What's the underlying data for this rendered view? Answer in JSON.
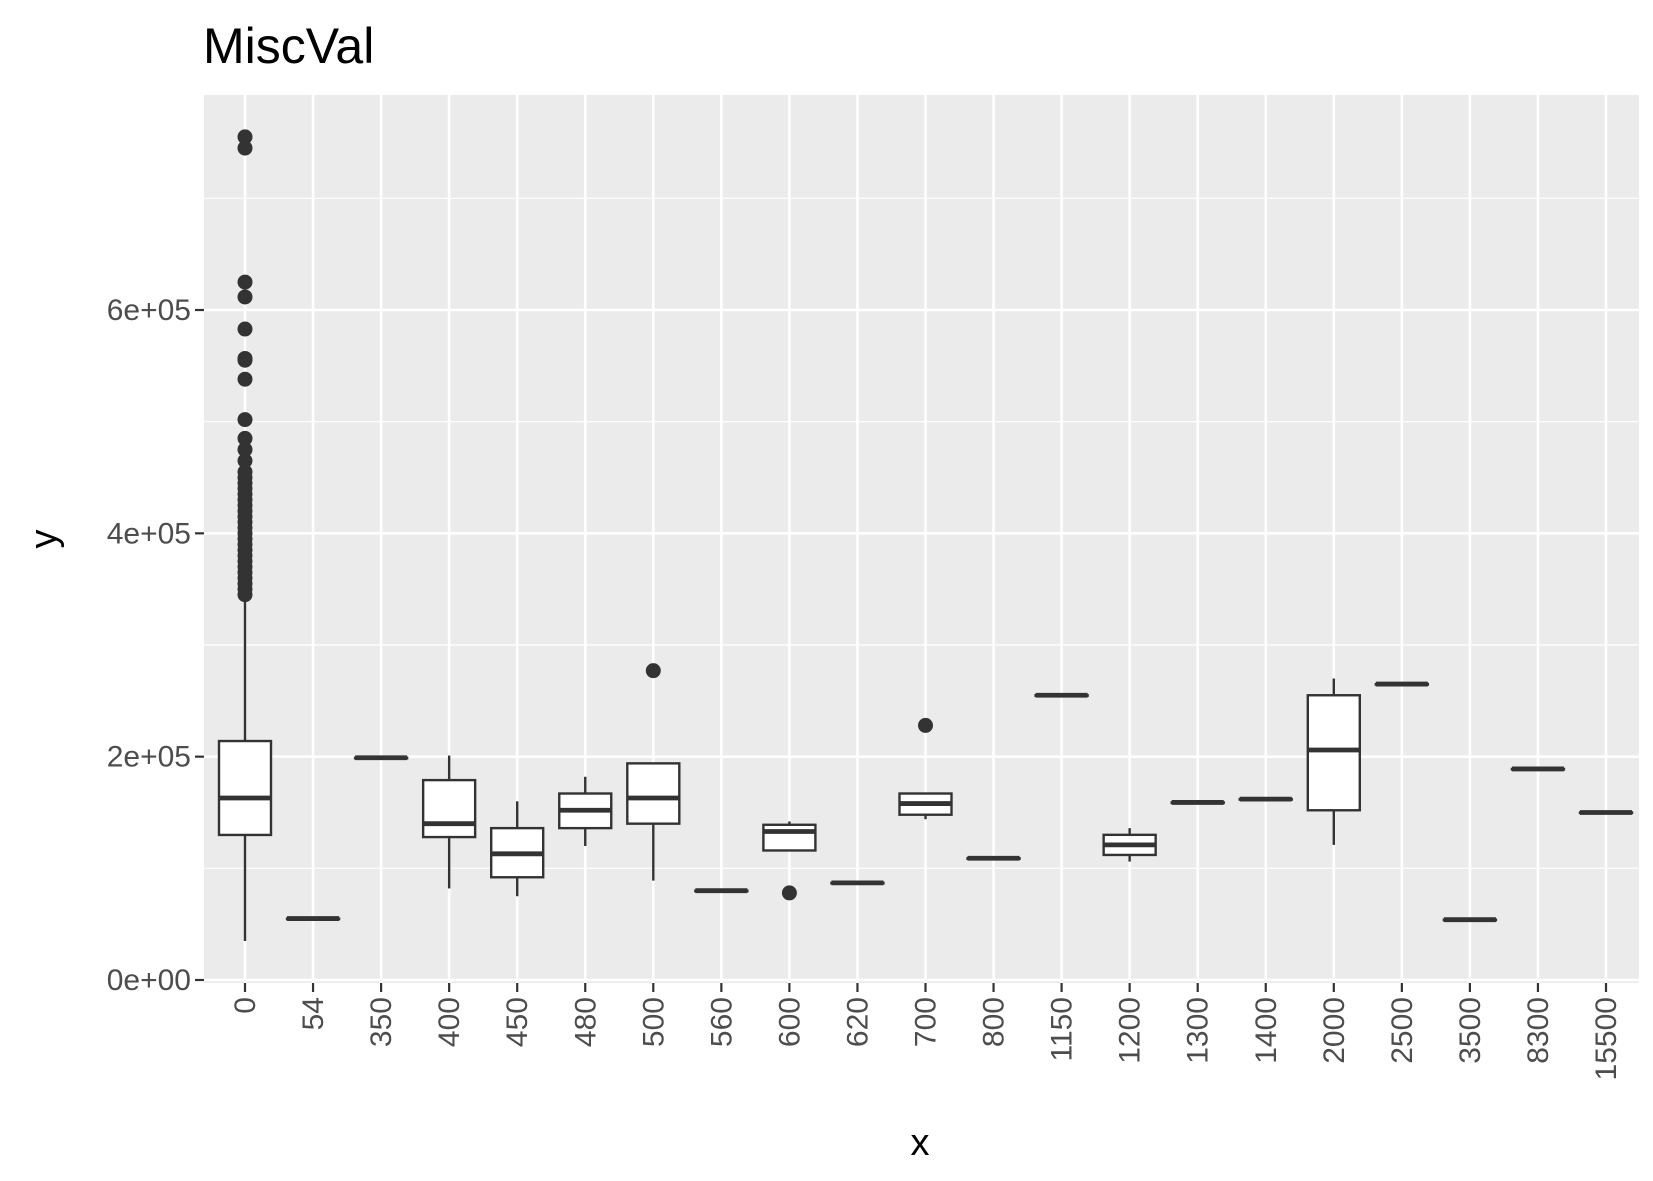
{
  "chart_data": {
    "type": "box",
    "title": "MiscVal",
    "xlabel": "x",
    "ylabel": "y",
    "categories": [
      "0",
      "54",
      "350",
      "400",
      "450",
      "480",
      "500",
      "560",
      "600",
      "620",
      "700",
      "800",
      "1150",
      "1200",
      "1300",
      "1400",
      "2000",
      "2500",
      "3500",
      "8300",
      "15500"
    ],
    "y_ticks": [
      {
        "value": 0,
        "label": "0e+00"
      },
      {
        "value": 200000,
        "label": "2e+05"
      },
      {
        "value": 400000,
        "label": "4e+05"
      },
      {
        "value": 600000,
        "label": "6e+05"
      }
    ],
    "ylim": [
      0,
      755000
    ],
    "grid": true,
    "boxes": [
      {
        "category": "0",
        "whisker_low": 34900,
        "q1": 129900,
        "median": 163000,
        "q3": 214000,
        "whisker_high": 340000,
        "outliers": [
          345000,
          350000,
          355000,
          360000,
          365000,
          370000,
          375000,
          380000,
          385000,
          390000,
          395000,
          400000,
          405000,
          410000,
          415000,
          420000,
          425000,
          430000,
          435000,
          440000,
          445000,
          450000,
          455000,
          465000,
          475000,
          485000,
          501837,
          538000,
          555000,
          556581,
          582933,
          611657,
          625000,
          745000,
          755000
        ]
      },
      {
        "category": "54",
        "whisker_low": 55000,
        "q1": 55000,
        "median": 55000,
        "q3": 55000,
        "whisker_high": 55000,
        "outliers": []
      },
      {
        "category": "350",
        "whisker_low": 199000,
        "q1": 199000,
        "median": 199000,
        "q3": 199000,
        "whisker_high": 199000,
        "outliers": []
      },
      {
        "category": "400",
        "whisker_low": 82000,
        "q1": 128000,
        "median": 140000,
        "q3": 179000,
        "whisker_high": 201000,
        "outliers": []
      },
      {
        "category": "450",
        "whisker_low": 75000,
        "q1": 92000,
        "median": 113000,
        "q3": 136000,
        "whisker_high": 160000,
        "outliers": []
      },
      {
        "category": "480",
        "whisker_low": 120000,
        "q1": 136000,
        "median": 152000,
        "q3": 167000,
        "whisker_high": 182000,
        "outliers": []
      },
      {
        "category": "500",
        "whisker_low": 89000,
        "q1": 140000,
        "median": 163000,
        "q3": 194000,
        "whisker_high": 194000,
        "outliers": [
          277000
        ]
      },
      {
        "category": "560",
        "whisker_low": 80000,
        "q1": 80000,
        "median": 80000,
        "q3": 80000,
        "whisker_high": 80000,
        "outliers": []
      },
      {
        "category": "600",
        "whisker_low": 116000,
        "q1": 116000,
        "median": 133000,
        "q3": 139000,
        "whisker_high": 142000,
        "outliers": [
          78000
        ]
      },
      {
        "category": "620",
        "whisker_low": 87000,
        "q1": 87000,
        "median": 87000,
        "q3": 87000,
        "whisker_high": 87000,
        "outliers": []
      },
      {
        "category": "700",
        "whisker_low": 144000,
        "q1": 148000,
        "median": 158000,
        "q3": 167000,
        "whisker_high": 167000,
        "outliers": [
          228000
        ]
      },
      {
        "category": "800",
        "whisker_low": 109000,
        "q1": 109000,
        "median": 109000,
        "q3": 109000,
        "whisker_high": 109000,
        "outliers": []
      },
      {
        "category": "1150",
        "whisker_low": 255000,
        "q1": 255000,
        "median": 255000,
        "q3": 255000,
        "whisker_high": 255000,
        "outliers": []
      },
      {
        "category": "1200",
        "whisker_low": 106000,
        "q1": 112000,
        "median": 121000,
        "q3": 130000,
        "whisker_high": 136000,
        "outliers": []
      },
      {
        "category": "1300",
        "whisker_low": 159000,
        "q1": 159000,
        "median": 159000,
        "q3": 159000,
        "whisker_high": 159000,
        "outliers": []
      },
      {
        "category": "1400",
        "whisker_low": 162000,
        "q1": 162000,
        "median": 162000,
        "q3": 162000,
        "whisker_high": 162000,
        "outliers": []
      },
      {
        "category": "2000",
        "whisker_low": 121000,
        "q1": 152000,
        "median": 206000,
        "q3": 255000,
        "whisker_high": 270000,
        "outliers": []
      },
      {
        "category": "2500",
        "whisker_low": 265000,
        "q1": 265000,
        "median": 265000,
        "q3": 265000,
        "whisker_high": 265000,
        "outliers": []
      },
      {
        "category": "3500",
        "whisker_low": 54000,
        "q1": 54000,
        "median": 54000,
        "q3": 54000,
        "whisker_high": 54000,
        "outliers": []
      },
      {
        "category": "8300",
        "whisker_low": 189000,
        "q1": 189000,
        "median": 189000,
        "q3": 189000,
        "whisker_high": 189000,
        "outliers": []
      },
      {
        "category": "15500",
        "whisker_low": 150000,
        "q1": 150000,
        "median": 150000,
        "q3": 150000,
        "whisker_high": 150000,
        "outliers": []
      }
    ]
  }
}
